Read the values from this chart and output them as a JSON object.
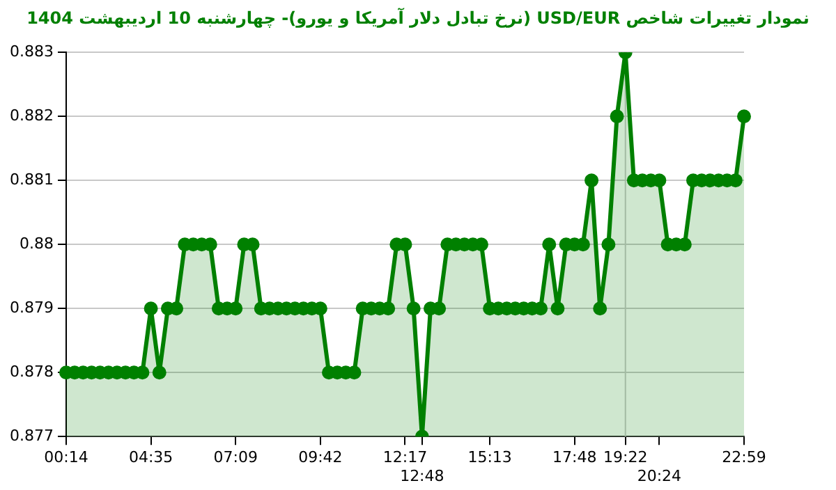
{
  "chart_data": {
    "type": "area",
    "title": "نمودار تغییرات شاخص USD/EUR (نرخ تبادل دلار آمریکا و یورو)- چهارشنبه  10 اردیبهشت 1404",
    "categories": [
      "00:14",
      null,
      null,
      null,
      null,
      null,
      null,
      null,
      null,
      null,
      "04:35",
      null,
      null,
      null,
      null,
      null,
      null,
      null,
      null,
      null,
      "07:09",
      null,
      null,
      null,
      null,
      null,
      null,
      null,
      null,
      null,
      "09:42",
      null,
      null,
      null,
      null,
      null,
      null,
      null,
      null,
      null,
      "12:17",
      null,
      "12:48",
      null,
      null,
      null,
      null,
      null,
      null,
      null,
      "15:13",
      null,
      null,
      null,
      null,
      null,
      null,
      null,
      null,
      null,
      "17:48",
      null,
      null,
      null,
      null,
      null,
      "19:22",
      null,
      null,
      null,
      "20:24",
      null,
      null,
      null,
      null,
      null,
      null,
      null,
      null,
      null,
      "22:59"
    ],
    "series": [
      {
        "color": "#008000",
        "values": [
          0.878,
          0.878,
          0.878,
          0.878,
          0.878,
          0.878,
          0.878,
          0.878,
          0.878,
          0.878,
          0.879,
          0.878,
          0.879,
          0.879,
          0.88,
          0.88,
          0.88,
          0.88,
          0.879,
          0.879,
          0.879,
          0.88,
          0.88,
          0.879,
          0.879,
          0.879,
          0.879,
          0.879,
          0.879,
          0.879,
          0.879,
          0.878,
          0.878,
          0.878,
          0.878,
          0.879,
          0.879,
          0.879,
          0.879,
          0.88,
          0.88,
          0.879,
          0.877,
          0.879,
          0.879,
          0.88,
          0.88,
          0.88,
          0.88,
          0.88,
          0.879,
          0.879,
          0.879,
          0.879,
          0.879,
          0.879,
          0.879,
          0.88,
          0.879,
          0.88,
          0.88,
          0.88,
          0.881,
          0.879,
          0.88,
          0.882,
          0.883,
          0.881,
          0.881,
          0.881,
          0.881,
          0.88,
          0.88,
          0.88,
          0.881,
          0.881,
          0.881,
          0.881,
          0.881,
          0.881,
          0.882
        ]
      }
    ],
    "ylim": [
      0.877,
      0.883
    ],
    "yticks": [
      0.877,
      0.878,
      0.879,
      0.88,
      0.881,
      0.882,
      0.883
    ],
    "grid": "y",
    "marker": "circle",
    "legend": false,
    "ref_lines": [
      {
        "axis": "x",
        "value": "19:22",
        "color": "#c8c8c8"
      }
    ]
  }
}
